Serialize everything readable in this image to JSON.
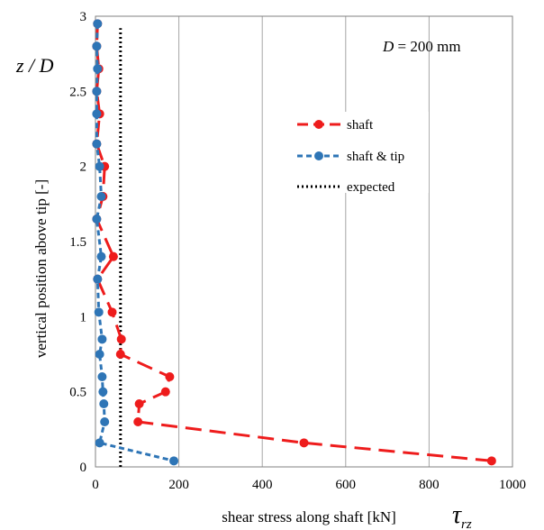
{
  "chart_data": {
    "type": "line",
    "annotation": {
      "var": "D",
      "eq": " = 200 mm"
    },
    "corner_label": "z / D",
    "xlabel": "shear stress along shaft [kN]",
    "xsymbol": {
      "base": "τ",
      "sub": "rz"
    },
    "ylabel": "vertical position above tip [-]",
    "xlim": [
      0,
      1000
    ],
    "ylim": [
      0,
      3
    ],
    "xticks": [
      "0",
      "200",
      "400",
      "600",
      "800",
      "1000"
    ],
    "yticks": [
      "0",
      "0.5",
      "1",
      "1.5",
      "2",
      "2.5",
      "3"
    ],
    "grid": "vertical",
    "legend_position": "right",
    "series": [
      {
        "name": "shaft",
        "color": "#ee1c1c",
        "dash": "long-dash",
        "x": [
          5,
          3,
          8,
          3,
          10,
          3,
          22,
          18,
          3,
          43,
          5,
          40,
          62,
          60,
          178,
          168,
          105,
          102,
          500,
          950
        ],
        "y": [
          2.95,
          2.8,
          2.65,
          2.5,
          2.35,
          2.15,
          2.0,
          1.8,
          1.65,
          1.4,
          1.25,
          1.03,
          0.85,
          0.75,
          0.6,
          0.5,
          0.42,
          0.3,
          0.16,
          0.04
        ]
      },
      {
        "name": "shaft & tip",
        "color": "#2e75b6",
        "dash": "dash",
        "x": [
          5,
          3,
          5,
          3,
          3,
          3,
          10,
          14,
          3,
          14,
          5,
          8,
          16,
          10,
          16,
          18,
          20,
          22,
          10,
          188
        ],
        "y": [
          2.95,
          2.8,
          2.65,
          2.5,
          2.35,
          2.15,
          2.0,
          1.8,
          1.65,
          1.4,
          1.25,
          1.03,
          0.85,
          0.75,
          0.6,
          0.5,
          0.42,
          0.3,
          0.16,
          0.04
        ]
      },
      {
        "name": "expected",
        "color": "#000000",
        "dash": "dotted",
        "x": [
          60,
          60
        ],
        "y": [
          0,
          2.92
        ]
      }
    ]
  }
}
